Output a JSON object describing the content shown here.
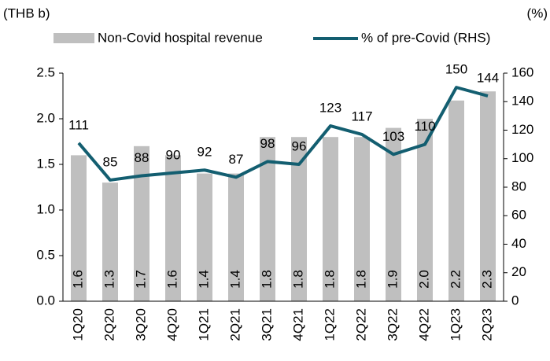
{
  "chart_data": {
    "type": "bar-line",
    "y_label": "(THB b)",
    "y2_label": "(%)",
    "categories": [
      "1Q20",
      "2Q20",
      "3Q20",
      "4Q20",
      "1Q21",
      "2Q21",
      "3Q21",
      "4Q21",
      "1Q22",
      "2Q22",
      "3Q22",
      "4Q22",
      "1Q23",
      "2Q23"
    ],
    "series": [
      {
        "name": "Non-Covid hospital revenue",
        "type": "bar",
        "color": "#bfbfbf",
        "values": [
          1.6,
          1.3,
          1.7,
          1.6,
          1.4,
          1.4,
          1.8,
          1.8,
          1.8,
          1.8,
          1.9,
          2.0,
          2.2,
          2.3
        ],
        "value_labels": [
          "1.6",
          "1.3",
          "1.7",
          "1.6",
          "1.4",
          "1.4",
          "1.8",
          "1.8",
          "1.8",
          "1.8",
          "1.9",
          "2.0",
          "2.2",
          "2.3"
        ]
      },
      {
        "name": "% of pre-Covid (RHS)",
        "type": "line",
        "color": "#135e70",
        "axis": "y2",
        "values": [
          111,
          85,
          88,
          90,
          92,
          87,
          98,
          96,
          123,
          117,
          103,
          110,
          150,
          144
        ]
      }
    ],
    "ylim": [
      0,
      2.5
    ],
    "yticks": [
      {
        "value": 0,
        "label": "0.0"
      },
      0.5,
      {
        "value": 1,
        "label": "1.0"
      },
      1.5,
      {
        "value": 2,
        "label": "2.0"
      },
      2.5
    ],
    "y2lim": [
      0,
      160
    ],
    "y2ticks": [
      0,
      20,
      40,
      60,
      80,
      100,
      120,
      140,
      160
    ],
    "legend": "top"
  }
}
